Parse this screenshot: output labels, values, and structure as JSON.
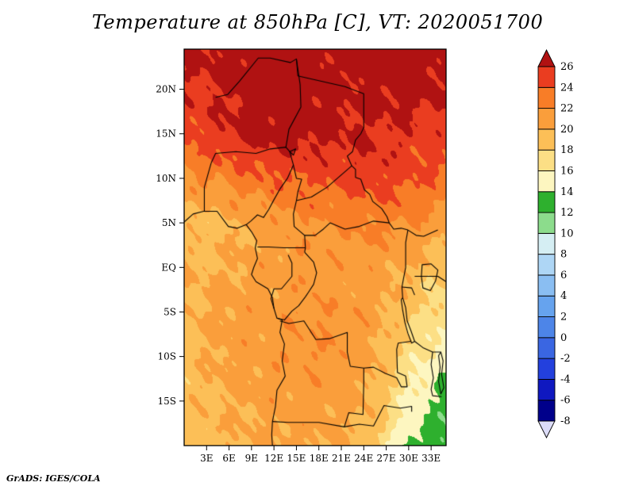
{
  "header": {
    "title": "Temperature at 850hPa [C], VT: 2020051700"
  },
  "footer": {
    "credit": "GrADS: IGES/COLA"
  },
  "colors": {
    "background": "#ffffff",
    "frame": "#000000",
    "text": "#000000"
  },
  "chart_data": {
    "type": "heatmap",
    "title": "Temperature at 850hPa [C], VT: 2020051700",
    "variable": "Temperature",
    "level": "850hPa",
    "units": "C",
    "valid_time": "2020051700",
    "lon_range": [
      0,
      35
    ],
    "lat_range": [
      -20,
      24.5
    ],
    "x_axis": {
      "values": [
        3,
        6,
        9,
        12,
        15,
        18,
        21,
        24,
        27,
        30,
        33
      ],
      "labels": [
        "3E",
        "6E",
        "9E",
        "12E",
        "15E",
        "18E",
        "21E",
        "24E",
        "27E",
        "30E",
        "33E"
      ]
    },
    "y_axis": {
      "values": [
        20,
        15,
        10,
        5,
        0,
        -5,
        -10,
        -15
      ],
      "labels": [
        "20N",
        "15N",
        "10N",
        "5N",
        "EQ",
        "5S",
        "10S",
        "15S"
      ]
    },
    "colorbar": {
      "levels": [
        -8,
        -6,
        -4,
        -2,
        0,
        2,
        4,
        6,
        8,
        10,
        12,
        14,
        16,
        18,
        20,
        22,
        24,
        26
      ],
      "segment_colors": [
        "#00008b",
        "#0f18c0",
        "#2340dd",
        "#3a66e2",
        "#4d85e8",
        "#66a3ee",
        "#8abef2",
        "#aed6f5",
        "#d5eef3",
        "#8cdc8c",
        "#2eb02e",
        "#fdf6c0",
        "#fcdf85",
        "#fcbf57",
        "#fa9e3b",
        "#f87d27",
        "#ea3d20"
      ],
      "under_color": "#dcdcf8",
      "over_color": "#b01212"
    },
    "grid": {
      "lons": [
        0,
        5,
        10,
        15,
        20,
        25,
        30,
        35
      ],
      "lats": [
        24.5,
        20,
        15,
        10,
        5,
        0,
        -5,
        -10,
        -15,
        -20
      ],
      "temps_c": [
        [
          26.2,
          26.8,
          27.6,
          27.2,
          26.6,
          27.2,
          27.6,
          26.6
        ],
        [
          25.6,
          26.2,
          27.2,
          27.6,
          26.6,
          26.6,
          27.2,
          26.2
        ],
        [
          24.6,
          25.6,
          27.0,
          27.0,
          26.4,
          26.0,
          25.6,
          24.6
        ],
        [
          21.6,
          22.6,
          23.6,
          24.2,
          24.6,
          25.0,
          24.6,
          23.6
        ],
        [
          19.0,
          19.4,
          20.6,
          21.6,
          22.0,
          22.6,
          22.2,
          21.0
        ],
        [
          19.6,
          20.0,
          20.6,
          21.0,
          21.0,
          21.0,
          20.0,
          18.6
        ],
        [
          19.6,
          20.6,
          21.0,
          21.6,
          21.6,
          21.0,
          18.6,
          16.6
        ],
        [
          19.0,
          20.6,
          21.0,
          21.6,
          21.6,
          20.6,
          17.0,
          14.6
        ],
        [
          19.0,
          20.0,
          20.6,
          21.0,
          21.0,
          20.0,
          15.6,
          13.0
        ],
        [
          19.0,
          19.6,
          20.0,
          20.6,
          20.0,
          19.0,
          13.6,
          12.0
        ]
      ]
    },
    "map_outlines": {
      "coastlines": [
        [
          [
            0,
            5.1
          ],
          [
            1.2,
            6.0
          ],
          [
            2.6,
            6.3
          ],
          [
            4.4,
            6.3
          ],
          [
            5.9,
            4.6
          ],
          [
            7.1,
            4.4
          ],
          [
            8.3,
            4.8
          ],
          [
            9.0,
            4.0
          ],
          [
            9.7,
            3.0
          ],
          [
            9.5,
            2.2
          ],
          [
            9.8,
            1.0
          ],
          [
            9.3,
            0.0
          ],
          [
            9.0,
            -0.8
          ],
          [
            9.6,
            -1.6
          ],
          [
            11.2,
            -2.4
          ],
          [
            11.8,
            -3.4
          ],
          [
            12.0,
            -4.6
          ],
          [
            12.4,
            -5.7
          ],
          [
            13.1,
            -5.9
          ],
          [
            12.8,
            -7.3
          ],
          [
            13.4,
            -8.6
          ],
          [
            13.1,
            -10.5
          ],
          [
            13.5,
            -12.2
          ],
          [
            12.4,
            -13.8
          ],
          [
            12.2,
            -15.6
          ],
          [
            11.8,
            -17.3
          ],
          [
            11.7,
            -18.8
          ],
          [
            11.8,
            -20.0
          ]
        ]
      ],
      "borders": [
        [
          [
            3.6,
            11.7
          ],
          [
            4.2,
            12.8
          ],
          [
            6.9,
            13.0
          ],
          [
            9.6,
            12.8
          ],
          [
            11.5,
            13.3
          ],
          [
            13.6,
            13.5
          ],
          [
            14.1,
            13.0
          ]
        ],
        [
          [
            14.1,
            13.0
          ],
          [
            14.6,
            11.5
          ],
          [
            13.8,
            10.0
          ],
          [
            12.8,
            8.8
          ],
          [
            12.0,
            7.6
          ],
          [
            11.3,
            6.5
          ],
          [
            10.6,
            5.6
          ],
          [
            9.8,
            5.9
          ],
          [
            8.9,
            5.2
          ],
          [
            8.3,
            4.8
          ]
        ],
        [
          [
            2.7,
            6.3
          ],
          [
            2.7,
            9.0
          ],
          [
            3.6,
            11.7
          ]
        ],
        [
          [
            4.2,
            19.1
          ],
          [
            5.8,
            19.4
          ],
          [
            7.4,
            20.9
          ],
          [
            9.9,
            23.5
          ],
          [
            11.5,
            23.5
          ],
          [
            14.2,
            23.0
          ],
          [
            15.0,
            23.4
          ],
          [
            15.2,
            21.5
          ],
          [
            21.5,
            20.3
          ],
          [
            24.0,
            19.5
          ],
          [
            24.0,
            15.7
          ]
        ],
        [
          [
            15.0,
            23.4
          ],
          [
            15.5,
            20.5
          ],
          [
            15.6,
            18.0
          ],
          [
            14.0,
            15.5
          ],
          [
            13.6,
            13.5
          ]
        ],
        [
          [
            24.0,
            15.7
          ],
          [
            23.6,
            15.0
          ],
          [
            22.9,
            14.3
          ],
          [
            22.5,
            13.0
          ],
          [
            21.8,
            12.5
          ],
          [
            22.4,
            11.4
          ],
          [
            22.9,
            11.0
          ],
          [
            22.9,
            10.1
          ],
          [
            23.6,
            9.9
          ],
          [
            24.1,
            8.7
          ],
          [
            24.8,
            8.2
          ],
          [
            25.2,
            7.4
          ],
          [
            26.4,
            6.6
          ],
          [
            27.1,
            5.7
          ],
          [
            27.4,
            5.0
          ]
        ],
        [
          [
            15.0,
            7.5
          ],
          [
            17.0,
            7.9
          ],
          [
            19.1,
            9.0
          ],
          [
            22.4,
            11.4
          ]
        ],
        [
          [
            14.6,
            11.5
          ],
          [
            15.0,
            10.0
          ],
          [
            15.7,
            9.9
          ],
          [
            15.2,
            8.5
          ],
          [
            15.0,
            7.5
          ]
        ],
        [
          [
            15.0,
            7.5
          ],
          [
            14.6,
            6.0
          ],
          [
            14.7,
            4.6
          ],
          [
            16.1,
            3.6
          ],
          [
            16.2,
            2.2
          ],
          [
            16.1,
            1.7
          ]
        ],
        [
          [
            9.8,
            2.3
          ],
          [
            11.3,
            2.3
          ],
          [
            13.3,
            2.2
          ],
          [
            16.2,
            2.2
          ]
        ],
        [
          [
            13.9,
            1.4
          ],
          [
            14.4,
            0.5
          ],
          [
            14.4,
            -1.0
          ],
          [
            13.0,
            -2.4
          ],
          [
            12.0,
            -2.4
          ],
          [
            11.6,
            -3.5
          ],
          [
            12.0,
            -4.6
          ]
        ],
        [
          [
            16.1,
            3.6
          ],
          [
            17.5,
            3.6
          ],
          [
            18.6,
            4.3
          ],
          [
            19.5,
            5.0
          ],
          [
            21.5,
            4.3
          ],
          [
            23.4,
            4.6
          ],
          [
            25.3,
            5.2
          ],
          [
            27.4,
            5.0
          ]
        ],
        [
          [
            27.4,
            5.0
          ],
          [
            28.0,
            4.3
          ],
          [
            29.0,
            4.4
          ],
          [
            29.9,
            4.2
          ]
        ],
        [
          [
            29.9,
            4.2
          ],
          [
            29.6,
            2.8
          ],
          [
            29.6,
            1.2
          ],
          [
            29.6,
            0.0
          ],
          [
            29.3,
            -1.3
          ],
          [
            29.1,
            -2.2
          ],
          [
            29.2,
            -3.4
          ]
        ],
        [
          [
            16.1,
            1.7
          ],
          [
            17.3,
            0.6
          ],
          [
            17.7,
            -0.6
          ],
          [
            17.3,
            -1.9
          ],
          [
            16.6,
            -2.8
          ],
          [
            16.2,
            -3.3
          ],
          [
            15.3,
            -4.3
          ],
          [
            14.4,
            -4.9
          ],
          [
            13.4,
            -5.9
          ],
          [
            12.4,
            -5.7
          ]
        ],
        [
          [
            12.8,
            -6.0
          ],
          [
            14.0,
            -6.3
          ],
          [
            16.0,
            -6.0
          ],
          [
            17.6,
            -8.1
          ],
          [
            19.4,
            -8.0
          ],
          [
            21.8,
            -7.3
          ],
          [
            21.8,
            -9.5
          ],
          [
            22.2,
            -11.1
          ],
          [
            24.0,
            -11.3
          ]
        ],
        [
          [
            24.0,
            -11.3
          ],
          [
            24.0,
            -13.0
          ],
          [
            23.9,
            -16.5
          ],
          [
            22.0,
            -16.3
          ],
          [
            21.4,
            -17.9
          ],
          [
            18.0,
            -17.4
          ],
          [
            13.9,
            -17.4
          ],
          [
            11.8,
            -17.3
          ]
        ],
        [
          [
            24.0,
            -11.3
          ],
          [
            25.3,
            -11.2
          ],
          [
            26.9,
            -11.9
          ],
          [
            28.4,
            -12.4
          ],
          [
            29.0,
            -13.4
          ],
          [
            29.8,
            -13.4
          ],
          [
            29.6,
            -12.2
          ],
          [
            28.5,
            -11.8
          ],
          [
            28.4,
            -9.2
          ],
          [
            28.6,
            -8.5
          ],
          [
            30.3,
            -8.3
          ]
        ],
        [
          [
            30.8,
            -8.3
          ],
          [
            31.9,
            -9.0
          ],
          [
            33.2,
            -9.5
          ],
          [
            34.3,
            -9.5
          ]
        ],
        [
          [
            33.2,
            -9.5
          ],
          [
            33.0,
            -10.9
          ],
          [
            33.3,
            -12.4
          ],
          [
            33.0,
            -13.7
          ],
          [
            33.2,
            -14.4
          ],
          [
            34.4,
            -14.5
          ]
        ],
        [
          [
            21.4,
            -17.9
          ],
          [
            23.4,
            -17.6
          ],
          [
            25.3,
            -17.8
          ],
          [
            26.7,
            -15.5
          ],
          [
            28.9,
            -15.8
          ],
          [
            30.4,
            -15.6
          ],
          [
            30.4,
            -16.2
          ]
        ],
        [
          [
            29.9,
            4.2
          ],
          [
            31.0,
            3.6
          ],
          [
            32.0,
            3.5
          ],
          [
            33.9,
            4.2
          ]
        ],
        [
          [
            29.1,
            -2.2
          ],
          [
            30.4,
            -2.3
          ],
          [
            30.8,
            -3.1
          ]
        ],
        [
          [
            30.8,
            -1.0
          ],
          [
            31.7,
            -1.0
          ],
          [
            33.9,
            -1.0
          ],
          [
            35.0,
            -1.6
          ]
        ]
      ],
      "lakes": [
        [
          [
            31.8,
            0.3
          ],
          [
            33.0,
            0.4
          ],
          [
            33.9,
            -0.3
          ],
          [
            33.6,
            -1.5
          ],
          [
            32.9,
            -2.6
          ],
          [
            31.9,
            -2.3
          ],
          [
            31.7,
            -1.0
          ]
        ],
        [
          [
            29.2,
            -3.4
          ],
          [
            29.6,
            -4.5
          ],
          [
            29.8,
            -6.0
          ],
          [
            30.3,
            -7.1
          ],
          [
            30.8,
            -8.3
          ],
          [
            30.4,
            -8.5
          ],
          [
            29.9,
            -7.4
          ],
          [
            29.5,
            -6.2
          ],
          [
            29.2,
            -4.8
          ],
          [
            29.0,
            -3.6
          ]
        ],
        [
          [
            34.3,
            -9.5
          ],
          [
            34.6,
            -10.5
          ],
          [
            34.4,
            -12.0
          ],
          [
            34.7,
            -13.5
          ],
          [
            34.3,
            -14.2
          ],
          [
            34.0,
            -12.8
          ],
          [
            34.2,
            -11.2
          ],
          [
            34.0,
            -9.9
          ]
        ],
        [
          [
            14.1,
            13.0
          ],
          [
            14.9,
            13.3
          ],
          [
            14.6,
            12.6
          ]
        ]
      ]
    }
  }
}
